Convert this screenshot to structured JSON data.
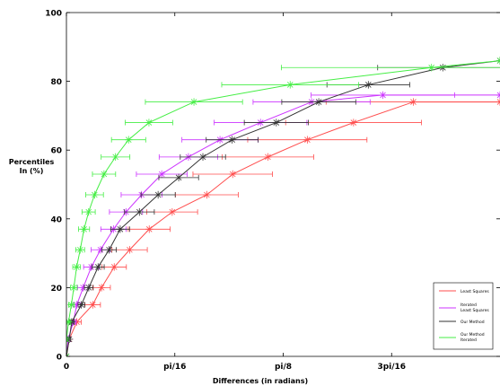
{
  "chart_data": {
    "type": "line",
    "xlabel": "Differences (in radians)",
    "ylabel_lines": [
      "Percentiles",
      "In (%)"
    ],
    "xlim": [
      0,
      0.7854
    ],
    "ylim": [
      0,
      100
    ],
    "x_ticks": [
      {
        "value": 0,
        "label": "0"
      },
      {
        "value": 0.19635,
        "label": "pi/16"
      },
      {
        "value": 0.3927,
        "label": "pi/8"
      },
      {
        "value": 0.58905,
        "label": "3pi/16"
      }
    ],
    "y_ticks": [
      0,
      20,
      40,
      60,
      80,
      100
    ],
    "legend_position": "bottom-right",
    "series": [
      {
        "name": "Least Squares",
        "color": "#ff4d4d",
        "x": [
          0,
          0.0051,
          0.0188,
          0.0476,
          0.0636,
          0.0866,
          0.1145,
          0.15,
          0.1916,
          0.2543,
          0.3012,
          0.3649,
          0.4364,
          0.5201,
          0.6284,
          0.7854
        ],
        "y": [
          0,
          5,
          10,
          15,
          20,
          26,
          31,
          37,
          42,
          47,
          53,
          58,
          63,
          68,
          74,
          74
        ],
        "err": [
          0,
          0.002,
          0.008,
          0.014,
          0.016,
          0.022,
          0.032,
          0.038,
          0.046,
          0.057,
          0.072,
          0.083,
          0.108,
          0.123,
          0.158,
          0
        ]
      },
      {
        "name": "Iterated Least Squares",
        "color": "#cc33ff",
        "x": [
          0,
          0.0032,
          0.0124,
          0.0188,
          0.0303,
          0.0451,
          0.0617,
          0.0853,
          0.1079,
          0.1361,
          0.1727,
          0.221,
          0.2782,
          0.3516,
          0.4441,
          0.5732,
          0.7854
        ],
        "y": [
          0,
          5,
          10,
          15,
          20,
          26,
          31,
          37,
          42,
          47,
          53,
          58,
          63,
          68,
          74,
          76,
          76
        ],
        "err": [
          0,
          0.001,
          0.005,
          0.007,
          0.01,
          0.014,
          0.017,
          0.023,
          0.03,
          0.037,
          0.046,
          0.053,
          0.069,
          0.084,
          0.106,
          0.13,
          0
        ]
      },
      {
        "name": "Our Method",
        "color": "#333333",
        "x": [
          0,
          0.0051,
          0.0096,
          0.0271,
          0.0405,
          0.0574,
          0.0774,
          0.0974,
          0.1322,
          0.1661,
          0.2034,
          0.2472,
          0.3002,
          0.3802,
          0.4571,
          0.5469,
          0.6818,
          0.7854
        ],
        "y": [
          0,
          5,
          10,
          15,
          20,
          26,
          31,
          37,
          42,
          47,
          52,
          58,
          63,
          68,
          74,
          79,
          84,
          86
        ],
        "err": [
          0,
          0.002,
          0.004,
          0.006,
          0.008,
          0.011,
          0.013,
          0.017,
          0.027,
          0.031,
          0.036,
          0.041,
          0.047,
          0.058,
          0.067,
          0.075,
          0.118,
          0
        ]
      },
      {
        "name": "Our Method Iterated",
        "color": "#44ee44",
        "x": [
          0,
          0.0,
          0.0038,
          0.0089,
          0.0134,
          0.0185,
          0.0249,
          0.0319,
          0.0402,
          0.051,
          0.0681,
          0.0889,
          0.1126,
          0.1495,
          0.231,
          0.4053,
          0.6613,
          0.7854
        ],
        "y": [
          0,
          5,
          10,
          15,
          20,
          26,
          31,
          37,
          42,
          47,
          53,
          58,
          63,
          68,
          74,
          79,
          84,
          86
        ],
        "err": [
          0,
          0.001,
          0.003,
          0.005,
          0.006,
          0.007,
          0.008,
          0.01,
          0.012,
          0.016,
          0.021,
          0.026,
          0.031,
          0.043,
          0.088,
          0.124,
          0.272,
          0
        ]
      }
    ]
  }
}
